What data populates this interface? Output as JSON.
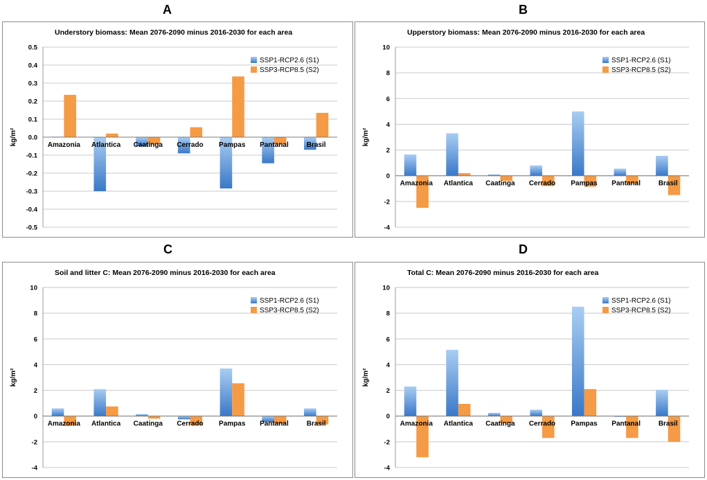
{
  "panel_letters": [
    "A",
    "B",
    "C",
    "D"
  ],
  "colors": {
    "s1_top": "#a9cdf2",
    "s1_bottom": "#3a78c8",
    "s2": "#f59a45",
    "grid": "#c8c8c8"
  },
  "chart_data": [
    {
      "type": "bar",
      "letter": "A",
      "title": "Understory biomass: Mean 2076-2090 minus 2016-2030 for each area",
      "ylabel": "kg/m²",
      "categories": [
        "Amazonia",
        "Atlantica",
        "Caatinga",
        "Cerrado",
        "Pampas",
        "Pantanal",
        "Brasil"
      ],
      "ylim": [
        -0.5,
        0.5
      ],
      "yticks": [
        -0.5,
        -0.4,
        -0.3,
        -0.2,
        -0.1,
        0.0,
        0.1,
        0.2,
        0.3,
        0.4,
        0.5
      ],
      "ytick_labels": [
        "-0.5",
        "-0.4",
        "-0.3",
        "-0.2",
        "-0.1",
        "0.0",
        "0.1",
        "0.2",
        "0.3",
        "0.4",
        "0.5"
      ],
      "series": [
        {
          "name": "SSP1-RCP2.6 (S1)",
          "values": [
            0.003,
            -0.3,
            -0.05,
            -0.09,
            -0.285,
            -0.145,
            -0.07
          ]
        },
        {
          "name": "SSP3-RCP8.5 (S2)",
          "values": [
            0.235,
            0.02,
            -0.04,
            0.055,
            0.337,
            -0.04,
            0.135
          ]
        }
      ],
      "legend": "top-right"
    },
    {
      "type": "bar",
      "letter": "B",
      "title": "Upperstory biomass: Mean 2076-2090 minus 2016-2030 for each area",
      "ylabel": "kg/m²",
      "categories": [
        "Amazonia",
        "Atlantica",
        "Caatinga",
        "Cerrado",
        "Pampas",
        "Pantanal",
        "Brasil"
      ],
      "ylim": [
        -4,
        10
      ],
      "yticks": [
        -4,
        -2,
        0,
        2,
        4,
        6,
        8,
        10
      ],
      "ytick_labels": [
        "-4",
        "-2",
        "0",
        "2",
        "4",
        "6",
        "8",
        "10"
      ],
      "series": [
        {
          "name": "SSP1-RCP2.6 (S1)",
          "values": [
            1.65,
            3.3,
            0.1,
            0.8,
            5.0,
            0.55,
            1.55
          ]
        },
        {
          "name": "SSP3-RCP8.5 (S2)",
          "values": [
            -2.5,
            0.2,
            -0.4,
            -0.8,
            -0.85,
            -0.6,
            -1.5
          ]
        }
      ],
      "legend": "top-right"
    },
    {
      "type": "bar",
      "letter": "C",
      "title": "Soil and litter C: Mean 2076-2090 minus 2016-2030 for each area",
      "ylabel": "kg/m²",
      "categories": [
        "Amazonia",
        "Atlantica",
        "Caatinga",
        "Cerrado",
        "Pampas",
        "Pantanal",
        "Brasil"
      ],
      "ylim": [
        -4,
        10
      ],
      "yticks": [
        -4,
        -2,
        0,
        2,
        4,
        6,
        8,
        10
      ],
      "ytick_labels": [
        "-4",
        "-2",
        "0",
        "2",
        "4",
        "6",
        "8",
        "10"
      ],
      "series": [
        {
          "name": "SSP1-RCP2.6 (S1)",
          "values": [
            0.6,
            2.1,
            0.15,
            -0.25,
            3.7,
            -0.45,
            0.6
          ]
        },
        {
          "name": "SSP3-RCP8.5 (S2)",
          "values": [
            -0.75,
            0.75,
            -0.2,
            -0.7,
            2.55,
            -0.6,
            -0.65
          ]
        }
      ],
      "legend": "top-right"
    },
    {
      "type": "bar",
      "letter": "D",
      "title": "Total C: Mean 2076-2090 minus 2016-2030 for each area",
      "ylabel": "kg/m²",
      "categories": [
        "Amazonia",
        "Atlantica",
        "Caatinga",
        "Cerrado",
        "Pampas",
        "Pantanal",
        "Brasil"
      ],
      "ylim": [
        -4,
        10
      ],
      "yticks": [
        -4,
        -2,
        0,
        2,
        4,
        6,
        8,
        10
      ],
      "ytick_labels": [
        "-4",
        "-2",
        "0",
        "2",
        "4",
        "6",
        "8",
        "10"
      ],
      "series": [
        {
          "name": "SSP1-RCP2.6 (S1)",
          "values": [
            2.3,
            5.15,
            0.25,
            0.5,
            8.5,
            -0.05,
            2.05
          ]
        },
        {
          "name": "SSP3-RCP8.5 (S2)",
          "values": [
            -3.2,
            0.95,
            -0.55,
            -1.7,
            2.1,
            -1.7,
            -2.0
          ]
        }
      ],
      "legend": "top-right"
    }
  ]
}
